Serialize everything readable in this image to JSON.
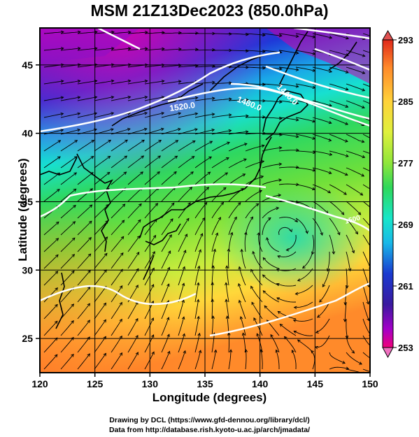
{
  "title": "MSM 21Z13Dec2023 (850.0hPa)",
  "footer": {
    "line1": "Drawing by DCL (https://www.gfd-dennou.org/library/dcl/)",
    "line2": "Data from http://database.rish.kyoto-u.ac.jp/arch/jmadata/"
  },
  "x_axis": {
    "label": "Longitude (degrees)",
    "ticks": [
      "120",
      "125",
      "130",
      "135",
      "140",
      "145",
      "150"
    ],
    "range": [
      120,
      150
    ]
  },
  "y_axis": {
    "label": "Latitude  (degrees)",
    "ticks": [
      "25",
      "30",
      "35",
      "40",
      "45"
    ],
    "range": [
      22.5,
      47.7
    ]
  },
  "colorbar": {
    "ticks": [
      "293",
      "285",
      "277",
      "269",
      "261",
      "253"
    ],
    "range": [
      253,
      293
    ],
    "colors": [
      "#f0007a",
      "#a300c8",
      "#3a1aa0",
      "#1a3ad0",
      "#18b8e8",
      "#17e6c9",
      "#2fd85a",
      "#8fe63a",
      "#dff03c",
      "#ffd23a",
      "#ff8a2a",
      "#e0281a"
    ]
  },
  "contour_labels": [
    "1520.0",
    "1480.0",
    "1440.0",
    "1500"
  ],
  "colors": {
    "contour": "#ffffff",
    "streamline": "#000000",
    "coast": "#000000"
  }
}
